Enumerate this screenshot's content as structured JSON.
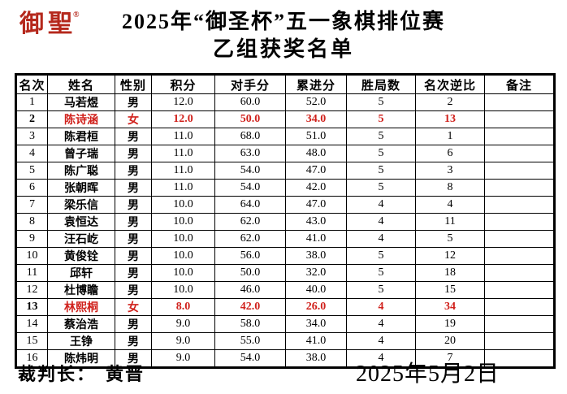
{
  "logo": {
    "text": "御聖",
    "registered_mark": "®",
    "color": "#b5281c"
  },
  "title": {
    "line1": "2025年“御圣杯”五一象棋排位赛",
    "line2": "乙组获奖名单"
  },
  "table": {
    "headers": [
      "名次",
      "姓名",
      "性别",
      "积分",
      "对手分",
      "累进分",
      "胜局数",
      "名次逆比",
      "备注"
    ],
    "highlight_color": "#d0211c",
    "rows": [
      {
        "rank": "1",
        "name": "马若煜",
        "gender": "男",
        "points": "12.0",
        "opponent_points": "60.0",
        "progressive_points": "52.0",
        "wins": "5",
        "rank_ratio": "2",
        "remark": "",
        "red": false
      },
      {
        "rank": "2",
        "name": "陈诗涵",
        "gender": "女",
        "points": "12.0",
        "opponent_points": "50.0",
        "progressive_points": "34.0",
        "wins": "5",
        "rank_ratio": "13",
        "remark": "",
        "red": true
      },
      {
        "rank": "3",
        "name": "陈君桓",
        "gender": "男",
        "points": "11.0",
        "opponent_points": "68.0",
        "progressive_points": "51.0",
        "wins": "5",
        "rank_ratio": "1",
        "remark": "",
        "red": false
      },
      {
        "rank": "4",
        "name": "曾子瑞",
        "gender": "男",
        "points": "11.0",
        "opponent_points": "63.0",
        "progressive_points": "48.0",
        "wins": "5",
        "rank_ratio": "6",
        "remark": "",
        "red": false
      },
      {
        "rank": "5",
        "name": "陈广聪",
        "gender": "男",
        "points": "11.0",
        "opponent_points": "54.0",
        "progressive_points": "47.0",
        "wins": "5",
        "rank_ratio": "3",
        "remark": "",
        "red": false
      },
      {
        "rank": "6",
        "name": "张朝晖",
        "gender": "男",
        "points": "11.0",
        "opponent_points": "54.0",
        "progressive_points": "42.0",
        "wins": "5",
        "rank_ratio": "8",
        "remark": "",
        "red": false
      },
      {
        "rank": "7",
        "name": "梁乐信",
        "gender": "男",
        "points": "10.0",
        "opponent_points": "64.0",
        "progressive_points": "47.0",
        "wins": "4",
        "rank_ratio": "4",
        "remark": "",
        "red": false
      },
      {
        "rank": "8",
        "name": "袁恒达",
        "gender": "男",
        "points": "10.0",
        "opponent_points": "62.0",
        "progressive_points": "43.0",
        "wins": "4",
        "rank_ratio": "11",
        "remark": "",
        "red": false
      },
      {
        "rank": "9",
        "name": "汪石屹",
        "gender": "男",
        "points": "10.0",
        "opponent_points": "62.0",
        "progressive_points": "41.0",
        "wins": "4",
        "rank_ratio": "5",
        "remark": "",
        "red": false
      },
      {
        "rank": "10",
        "name": "黄俊铨",
        "gender": "男",
        "points": "10.0",
        "opponent_points": "56.0",
        "progressive_points": "38.0",
        "wins": "5",
        "rank_ratio": "12",
        "remark": "",
        "red": false
      },
      {
        "rank": "11",
        "name": "邱轩",
        "gender": "男",
        "points": "10.0",
        "opponent_points": "50.0",
        "progressive_points": "32.0",
        "wins": "5",
        "rank_ratio": "18",
        "remark": "",
        "red": false
      },
      {
        "rank": "12",
        "name": "杜博瞻",
        "gender": "男",
        "points": "10.0",
        "opponent_points": "46.0",
        "progressive_points": "40.0",
        "wins": "5",
        "rank_ratio": "15",
        "remark": "",
        "red": false
      },
      {
        "rank": "13",
        "name": "林熙桐",
        "gender": "女",
        "points": "8.0",
        "opponent_points": "42.0",
        "progressive_points": "26.0",
        "wins": "4",
        "rank_ratio": "34",
        "remark": "",
        "red": true
      },
      {
        "rank": "14",
        "name": "蔡治浩",
        "gender": "男",
        "points": "9.0",
        "opponent_points": "58.0",
        "progressive_points": "34.0",
        "wins": "4",
        "rank_ratio": "19",
        "remark": "",
        "red": false
      },
      {
        "rank": "15",
        "name": "王铮",
        "gender": "男",
        "points": "9.0",
        "opponent_points": "55.0",
        "progressive_points": "41.0",
        "wins": "4",
        "rank_ratio": "20",
        "remark": "",
        "red": false
      },
      {
        "rank": "16",
        "name": "陈炜明",
        "gender": "男",
        "points": "9.0",
        "opponent_points": "54.0",
        "progressive_points": "38.0",
        "wins": "4",
        "rank_ratio": "7",
        "remark": "",
        "red": false
      }
    ]
  },
  "footer": {
    "referee_label": "裁判长：",
    "referee_name": "黄晋",
    "date": "2025年5月2日"
  }
}
